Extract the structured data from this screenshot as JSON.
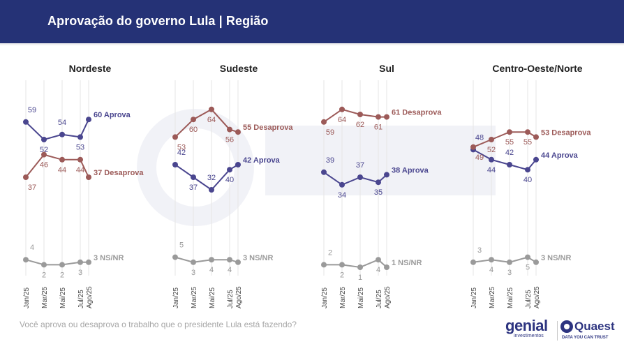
{
  "header": {
    "title": "Aprovação do governo Lula | Região"
  },
  "footer": {
    "question": "Você aprova ou desaprova o trabalho que o presidente Lula está fazendo?"
  },
  "logos": {
    "genial_word": "genial",
    "genial_sub": "investimentos",
    "quaest_word": "Quaest",
    "quaest_tag": "DATA YOU CAN TRUST"
  },
  "colors": {
    "aprova": "#4a468f",
    "desaprova": "#9c5a58",
    "nsnr": "#9a9a9a",
    "header": "#253276"
  },
  "chart_data": [
    {
      "type": "line",
      "title": "Nordeste",
      "x": [
        "Jan/25",
        "Mar/25",
        "Mai/25",
        "Jul/25",
        "Ago/25"
      ],
      "series": [
        {
          "name": "Aprova",
          "key": "aprova",
          "values": [
            59,
            52,
            54,
            53,
            60
          ],
          "end_label": "60 Aprova"
        },
        {
          "name": "Desaprova",
          "key": "desaprova",
          "values": [
            37,
            46,
            44,
            44,
            37
          ],
          "end_label": "37 Desaprova"
        },
        {
          "name": "NS/NR",
          "key": "nsnr",
          "values": [
            4,
            2,
            2,
            3,
            3
          ],
          "end_label": "3 NS/NR"
        }
      ]
    },
    {
      "type": "line",
      "title": "Sudeste",
      "x": [
        "Jan/25",
        "Mar/25",
        "Mai/25",
        "Jul/25",
        "Ago/25"
      ],
      "series": [
        {
          "name": "Aprova",
          "key": "aprova",
          "values": [
            42,
            37,
            32,
            40,
            42
          ],
          "end_label": "42 Aprova"
        },
        {
          "name": "Desaprova",
          "key": "desaprova",
          "values": [
            53,
            60,
            64,
            56,
            55
          ],
          "end_label": "55 Desaprova"
        },
        {
          "name": "NS/NR",
          "key": "nsnr",
          "values": [
            5,
            3,
            4,
            4,
            3
          ],
          "end_label": "3 NS/NR"
        }
      ]
    },
    {
      "type": "line",
      "title": "Sul",
      "x": [
        "Jan/25",
        "Mar/25",
        "Mai/25",
        "Jul/25",
        "Ago/25"
      ],
      "series": [
        {
          "name": "Aprova",
          "key": "aprova",
          "values": [
            39,
            34,
            37,
            35,
            38
          ],
          "end_label": "38 Aprova"
        },
        {
          "name": "Desaprova",
          "key": "desaprova",
          "values": [
            59,
            64,
            62,
            61,
            61
          ],
          "end_label": "61 Desaprova"
        },
        {
          "name": "NS/NR",
          "key": "nsnr",
          "values": [
            2,
            2,
            1,
            4,
            1
          ],
          "end_label": "1 NS/NR"
        }
      ]
    },
    {
      "type": "line",
      "title": "Centro-Oeste/Norte",
      "x": [
        "Jan/25",
        "Mar/25",
        "Mai/25",
        "Jul/25",
        "Ago/25"
      ],
      "series": [
        {
          "name": "Aprova",
          "key": "aprova",
          "values": [
            48,
            44,
            42,
            40,
            44
          ],
          "end_label": "44 Aprova"
        },
        {
          "name": "Desaprova",
          "key": "desaprova",
          "values": [
            49,
            52,
            55,
            55,
            53
          ],
          "end_label": "53 Desaprova"
        },
        {
          "name": "NS/NR",
          "key": "nsnr",
          "values": [
            3,
            4,
            3,
            5,
            3
          ],
          "end_label": "3 NS/NR"
        }
      ]
    }
  ]
}
